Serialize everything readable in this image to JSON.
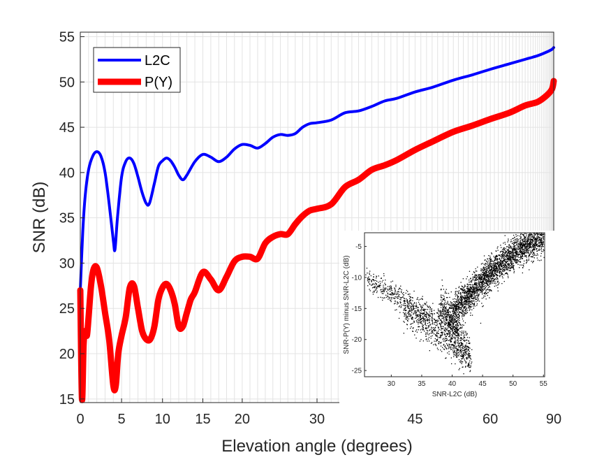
{
  "chart_data": [
    {
      "type": "line",
      "title": "",
      "xlabel": "Elevation angle (degrees)",
      "ylabel": "SNR (dB)",
      "xscale": "sin(elevation)",
      "xticks": [
        0,
        5,
        10,
        15,
        20,
        30,
        45,
        60,
        90
      ],
      "xtick_labels": [
        "0",
        "5",
        "10",
        "15",
        "20",
        "30",
        "45",
        "60",
        "90"
      ],
      "yticks": [
        15,
        20,
        25,
        30,
        35,
        40,
        45,
        50,
        55
      ],
      "ytick_labels": [
        "15",
        "20",
        "25",
        "30",
        "35",
        "40",
        "45",
        "50",
        "55"
      ],
      "xlim": [
        0,
        90
      ],
      "ylim": [
        14.6,
        55.5
      ],
      "grid": true,
      "legend_position": "top-left",
      "series": [
        {
          "name": "L2C",
          "color": "#0000ff",
          "line_style": "thin",
          "x": [
            0,
            0.3,
            0.6,
            1,
            1.5,
            2,
            2.5,
            3,
            3.5,
            4,
            4.2,
            4.5,
            5,
            5.5,
            6,
            6.5,
            7,
            7.5,
            8,
            8.4,
            9,
            9.5,
            10,
            10.5,
            11,
            11.5,
            12,
            12.5,
            13,
            14,
            15,
            16,
            17,
            18,
            19,
            20,
            21,
            22,
            23,
            24,
            25,
            26,
            27,
            28,
            29,
            30,
            32,
            34,
            36,
            38,
            40,
            42,
            45,
            48,
            52,
            56,
            60,
            65,
            70,
            75,
            80,
            85,
            90
          ],
          "y": [
            27,
            33.5,
            37.5,
            40.3,
            41.8,
            42.3,
            41.8,
            40,
            36.5,
            32.5,
            31.5,
            35,
            39.5,
            41.2,
            41.6,
            41,
            39.5,
            37.8,
            36.6,
            36.6,
            38.8,
            40.7,
            41.3,
            41.6,
            41.3,
            40.6,
            39.7,
            39.2,
            39.7,
            41.2,
            42,
            41.7,
            41.2,
            41.7,
            42.6,
            43.1,
            43,
            42.7,
            43.2,
            43.9,
            44.2,
            44.1,
            44.3,
            45,
            45.4,
            45.5,
            45.8,
            46.6,
            46.8,
            47.3,
            47.9,
            48.2,
            48.9,
            49.4,
            50.2,
            50.8,
            51.4,
            52,
            52.5,
            52.9,
            53.3,
            53.6,
            53.8
          ]
        },
        {
          "name": "P(Y)",
          "color": "#ff0000",
          "line_style": "thick",
          "x": [
            0,
            0.2,
            0.4,
            0.6,
            0.8,
            1,
            1.3,
            1.6,
            2,
            2.5,
            3,
            3.5,
            4,
            4.3,
            4.6,
            5,
            5.5,
            6,
            6.5,
            7,
            7.5,
            8,
            8.5,
            9,
            9.5,
            10,
            10.5,
            11,
            11.5,
            12,
            12.5,
            13,
            13.5,
            14,
            15,
            16,
            17,
            18,
            19,
            20,
            21,
            22,
            23,
            24,
            25,
            26,
            27,
            28,
            29,
            30,
            32,
            34,
            36,
            38,
            40,
            42,
            45,
            48,
            52,
            56,
            60,
            65,
            70,
            75,
            80,
            85,
            90
          ],
          "y": [
            27,
            15,
            21,
            22.5,
            22,
            24,
            27.5,
            29.3,
            29.5,
            27.5,
            24.5,
            21.5,
            16.5,
            16.5,
            20,
            22,
            24,
            27.3,
            27.5,
            25,
            22.5,
            21.6,
            21.6,
            23,
            26,
            27.3,
            27.7,
            27,
            25.5,
            23,
            23,
            24.5,
            26,
            26.8,
            29,
            28.2,
            27,
            28.5,
            30.2,
            30.7,
            30.7,
            30.5,
            32.2,
            32.9,
            33.2,
            33.2,
            34.3,
            35.2,
            35.8,
            36,
            36.5,
            38.4,
            39.2,
            40.3,
            40.8,
            41.4,
            42.5,
            43.4,
            44.5,
            45.2,
            45.9,
            46.6,
            47.4,
            47.8,
            48.5,
            49.2,
            50.1
          ]
        }
      ]
    },
    {
      "type": "scatter",
      "title": "",
      "xlabel": "SNR-L2C (dB)",
      "ylabel": "SNR-P(Y) minus SNR-L2C (dB)",
      "xticks": [
        30,
        35,
        40,
        45,
        50,
        55
      ],
      "xtick_labels": [
        "30",
        "35",
        "40",
        "45",
        "50",
        "55"
      ],
      "yticks": [
        -5,
        -10,
        -15,
        -20,
        -25
      ],
      "ytick_labels": [
        "-5",
        "-10",
        "-15",
        "-20",
        "-25"
      ],
      "xlim": [
        25.6,
        55.2
      ],
      "ylim": [
        -26,
        -2.8
      ],
      "grid": false,
      "point_color": "#000000",
      "clusters": [
        {
          "x_range": [
            26,
            41
          ],
          "center_line": [
            [
              26,
              -10.3
            ],
            [
              41,
              -18.5
            ]
          ],
          "spread": 0.9,
          "count": 650
        },
        {
          "x_range": [
            32,
            42
          ],
          "center_line": [
            [
              32,
              -15.5
            ],
            [
              42,
              -22.5
            ]
          ],
          "spread": 1.1,
          "count": 450
        },
        {
          "x_range": [
            38,
            43
          ],
          "center_line": [
            [
              38,
              -14
            ],
            [
              43,
              -23
            ]
          ],
          "spread": 1.6,
          "count": 500
        },
        {
          "x_range": [
            40,
            55
          ],
          "center_line": [
            [
              40,
              -15.5
            ],
            [
              45,
              -10.5
            ],
            [
              50,
              -6
            ],
            [
              54.5,
              -3.5
            ]
          ],
          "spread": 1.3,
          "count": 2600
        }
      ]
    }
  ]
}
